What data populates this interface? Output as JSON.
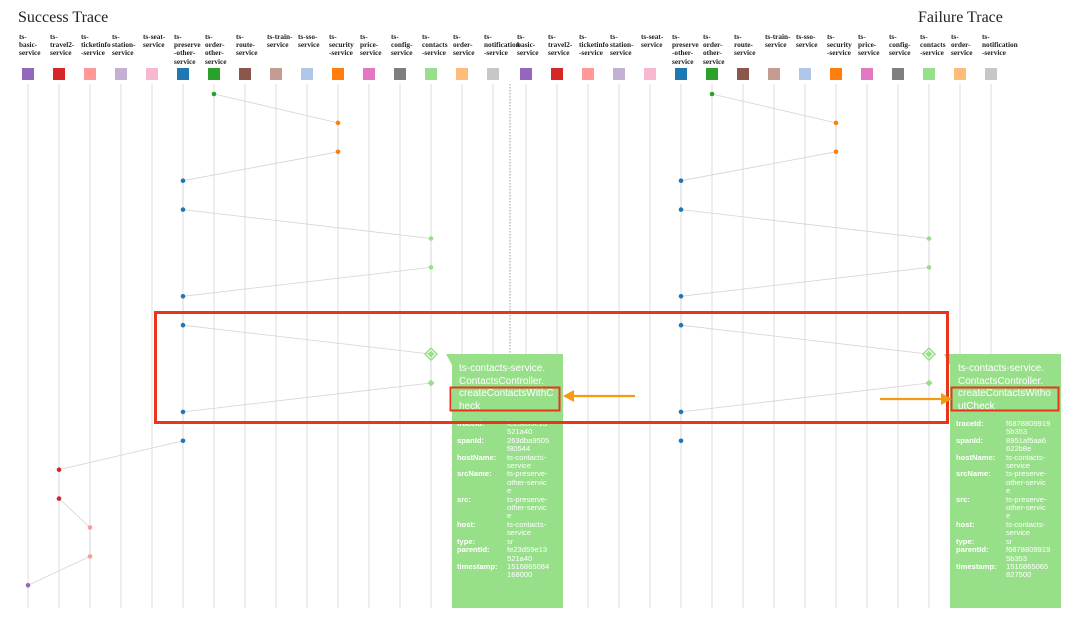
{
  "titles": {
    "success": "Success Trace",
    "failure": "Failure Trace"
  },
  "services": [
    {
      "label": "ts-\nbasic-\nservice",
      "color": "#9467bd"
    },
    {
      "label": "ts-\ntravel2-\nservice",
      "color": "#d62728"
    },
    {
      "label": "ts-\nticketinfo\n-service",
      "color": "#ff9896"
    },
    {
      "label": "ts-\nstation-\nservice",
      "color": "#c5b0d5"
    },
    {
      "label": "ts-seat-\nservice",
      "color": "#f7b6d2"
    },
    {
      "label": "ts-\npreserve\n-other-\nservice",
      "color": "#1f77b4"
    },
    {
      "label": "ts-\norder-\nother-\nservice",
      "color": "#2ca02c"
    },
    {
      "label": "ts-\nroute-\nservice",
      "color": "#8c564b"
    },
    {
      "label": "ts-train-\nservice",
      "color": "#c49c94"
    },
    {
      "label": "ts-sso-\nservice",
      "color": "#aec7e8"
    },
    {
      "label": "ts-\nsecurity\n-service",
      "color": "#ff7f0e"
    },
    {
      "label": "ts-\nprice-\nservice",
      "color": "#e377c2"
    },
    {
      "label": "ts-\nconfig-\nservice",
      "color": "#7f7f7f"
    },
    {
      "label": "ts-\ncontacts\n-service",
      "color": "#98df8a"
    },
    {
      "label": "ts-\norder-\nservice",
      "color": "#ffbb78"
    },
    {
      "label": "ts-\nnotification\n-service",
      "color": "#c7c7c7"
    }
  ],
  "success_tooltip": {
    "method": "ts-contacts-service.\nContactsController.\ncreateContactsWithC\nheck",
    "fields": [
      {
        "key": "traceId:",
        "value": "fe23d59e13\n521a40"
      },
      {
        "key": "spanId:",
        "value": "263dba9505\nf80544"
      },
      {
        "key": "hostName:",
        "value": "ts-contacts-\nservice"
      },
      {
        "key": "srcName:",
        "value": "ts-preserve-\nother-servic\ne"
      },
      {
        "key": "src:",
        "value": "ts-preserve-\nother-servic\ne"
      },
      {
        "key": "host:",
        "value": "ts-contacts-\nservice"
      },
      {
        "key": "type:",
        "value": "sr"
      },
      {
        "key": "parentId:",
        "value": "fe23d59e13\n521a40"
      },
      {
        "key": "timestamp:",
        "value": "1516865084\n168000"
      }
    ]
  },
  "failure_tooltip": {
    "method": "ts-contacts-service.\nContactsController.\ncreateContactsWitho\nutCheck",
    "fields": [
      {
        "key": "traceId:",
        "value": "f6878809919\n5b353"
      },
      {
        "key": "spanId:",
        "value": "8951af5aa6\n622b8e"
      },
      {
        "key": "hostName:",
        "value": "ts-contacts-\nservice"
      },
      {
        "key": "srcName:",
        "value": "ts-preserve-\nother-servic\ne"
      },
      {
        "key": "src:",
        "value": "ts-preserve-\nother-servic\ne"
      },
      {
        "key": "host:",
        "value": "ts-contacts-\nservice"
      },
      {
        "key": "type:",
        "value": "sr"
      },
      {
        "key": "parentId:",
        "value": "f6878809919\n5b353"
      },
      {
        "key": "timestamp:",
        "value": "1516865065\n827500"
      }
    ]
  },
  "success_trace": [
    6,
    10,
    10,
    5,
    5,
    13,
    13,
    5,
    5,
    13,
    13,
    5,
    5,
    1,
    1,
    2,
    2,
    0
  ],
  "failure_trace": [
    6,
    10,
    10,
    5,
    5,
    13,
    13,
    5,
    5,
    13,
    13,
    5,
    5
  ]
}
